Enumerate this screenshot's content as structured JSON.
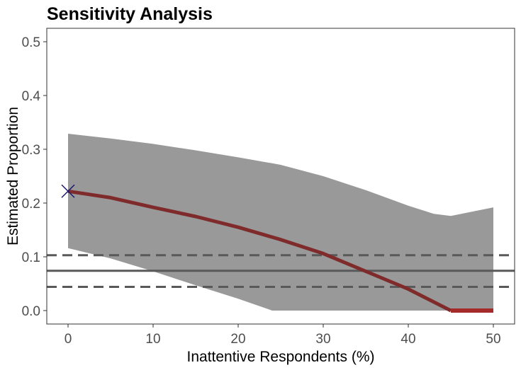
{
  "chart_data": {
    "type": "line",
    "title": "Sensitivity Analysis",
    "xlabel": "Inattentive Respondents (%)",
    "ylabel": "Estimated Proportion",
    "xlim": [
      -2.5,
      52.5
    ],
    "ylim": [
      -0.025,
      0.525
    ],
    "xticks": [
      0,
      10,
      20,
      30,
      40,
      50
    ],
    "xtick_labels": [
      "0",
      "10",
      "20",
      "30",
      "40",
      "50"
    ],
    "yticks": [
      0.0,
      0.1,
      0.2,
      0.3,
      0.4,
      0.5
    ],
    "ytick_labels": [
      "0.0",
      "0.1",
      "0.2",
      "0.3",
      "0.4",
      "0.5"
    ],
    "grid": false,
    "colors": {
      "estimate_line": "#7f2a2b",
      "zero_segment": "#a52a2a",
      "band": "#999999",
      "reference_lines": "#595959",
      "marker": "#1a1a6e",
      "frame": "#333333"
    },
    "series": [
      {
        "type": "line",
        "x": [
          0,
          5,
          10,
          15,
          20,
          25,
          30,
          35,
          40,
          45
        ],
        "y": [
          0.222,
          0.21,
          0.192,
          0.175,
          0.155,
          0.132,
          0.106,
          0.073,
          0.04,
          0.0
        ]
      },
      {
        "type": "line",
        "x": [
          45,
          50
        ],
        "y": [
          0.0,
          0.0
        ]
      },
      {
        "type": "ribbon",
        "x": [
          0,
          5,
          10,
          15,
          20,
          24,
          25,
          30,
          35,
          40,
          43,
          45,
          50
        ],
        "upper": [
          0.329,
          0.32,
          0.31,
          0.298,
          0.285,
          0.274,
          0.271,
          0.25,
          0.224,
          0.195,
          0.18,
          0.176,
          0.192
        ],
        "lower": [
          0.116,
          0.097,
          0.073,
          0.047,
          0.022,
          0.0,
          0.0,
          0.0,
          0.0,
          0.0,
          0.0,
          0.0,
          0.0
        ]
      }
    ],
    "reference_lines": [
      {
        "y": 0.074,
        "style": "solid"
      },
      {
        "y": 0.103,
        "style": "dashed"
      },
      {
        "y": 0.044,
        "style": "dashed"
      }
    ],
    "marker": {
      "x": 0,
      "y": 0.222,
      "shape": "x"
    }
  }
}
